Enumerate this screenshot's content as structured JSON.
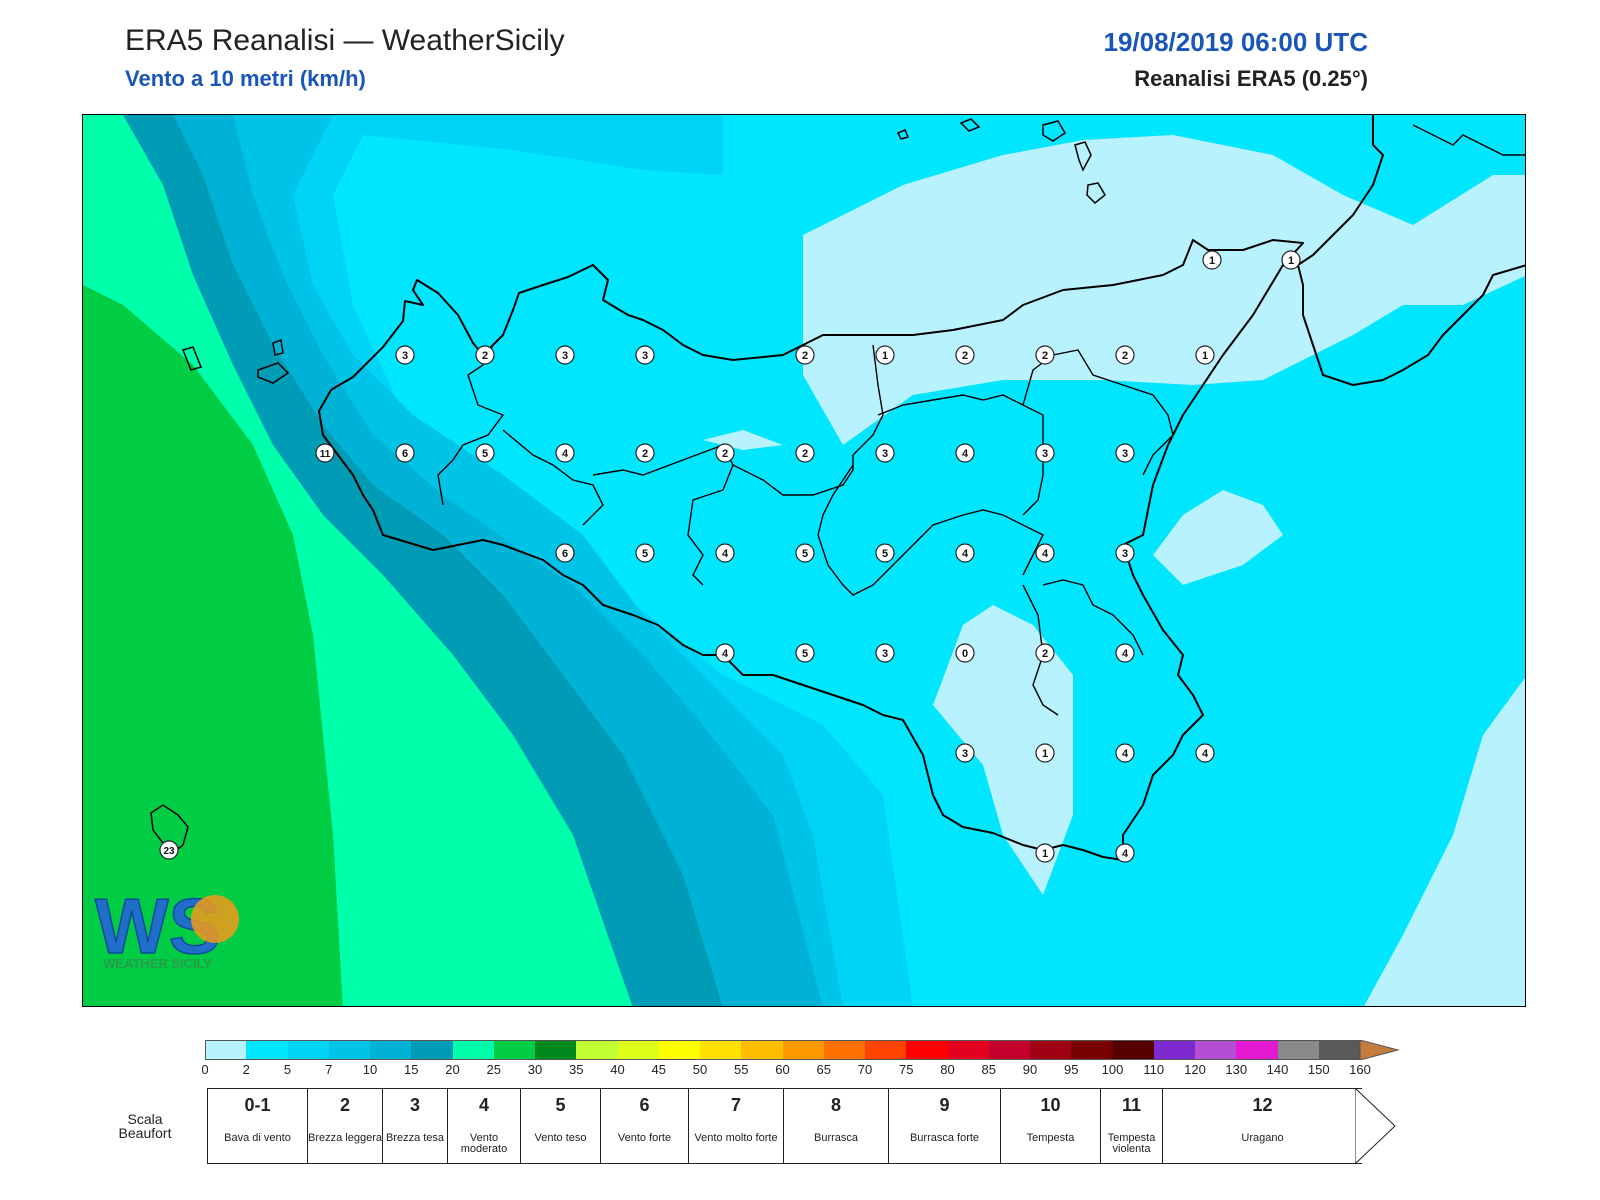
{
  "header": {
    "title": "ERA5 Reanalisi — WeatherSicily",
    "subtitle": "Vento a 10 metri (km/h)",
    "date": "19/08/2019 06:00 UTC",
    "model": "Reanalisi ERA5 (0.25°)"
  },
  "map": {
    "logo_text": "WEATHER SICILY",
    "logo_letters": "WS",
    "station_values": [
      {
        "name": "w1",
        "value": "3"
      },
      {
        "name": "w2",
        "value": "2"
      },
      {
        "name": "w3",
        "value": "3"
      },
      {
        "name": "w4",
        "value": "3"
      },
      {
        "name": "w5",
        "value": "2"
      },
      {
        "name": "w6",
        "value": "1"
      },
      {
        "name": "w7",
        "value": "2"
      },
      {
        "name": "w8",
        "value": "2"
      },
      {
        "name": "w9",
        "value": "2"
      },
      {
        "name": "w10",
        "value": "1"
      },
      {
        "name": "w11",
        "value": "1"
      },
      {
        "name": "w12",
        "value": "1"
      },
      {
        "name": "w13",
        "value": "11"
      },
      {
        "name": "w14",
        "value": "6"
      },
      {
        "name": "w15",
        "value": "5"
      },
      {
        "name": "w16",
        "value": "4"
      },
      {
        "name": "w17",
        "value": "2"
      },
      {
        "name": "w18",
        "value": "2"
      },
      {
        "name": "w19",
        "value": "2"
      },
      {
        "name": "w20",
        "value": "3"
      },
      {
        "name": "w21",
        "value": "4"
      },
      {
        "name": "w22",
        "value": "3"
      },
      {
        "name": "w23",
        "value": "3"
      },
      {
        "name": "w24",
        "value": "6"
      },
      {
        "name": "w25",
        "value": "5"
      },
      {
        "name": "w26",
        "value": "4"
      },
      {
        "name": "w27",
        "value": "5"
      },
      {
        "name": "w28",
        "value": "5"
      },
      {
        "name": "w29",
        "value": "4"
      },
      {
        "name": "w30",
        "value": "4"
      },
      {
        "name": "w31",
        "value": "3"
      },
      {
        "name": "w32",
        "value": "4"
      },
      {
        "name": "w33",
        "value": "5"
      },
      {
        "name": "w34",
        "value": "3"
      },
      {
        "name": "w35",
        "value": "0"
      },
      {
        "name": "w36",
        "value": "2"
      },
      {
        "name": "w37",
        "value": "4"
      },
      {
        "name": "w38",
        "value": "3"
      },
      {
        "name": "w39",
        "value": "1"
      },
      {
        "name": "w40",
        "value": "4"
      },
      {
        "name": "w41",
        "value": "4"
      },
      {
        "name": "w42",
        "value": "1"
      },
      {
        "name": "w43",
        "value": "4"
      },
      {
        "name": "w44",
        "value": "23"
      }
    ]
  },
  "colorbar": {
    "ticks": [
      "0",
      "2",
      "5",
      "7",
      "10",
      "15",
      "20",
      "25",
      "30",
      "35",
      "40",
      "45",
      "50",
      "55",
      "60",
      "65",
      "70",
      "75",
      "80",
      "85",
      "90",
      "95",
      "100",
      "110",
      "120",
      "130",
      "140",
      "150",
      "160"
    ],
    "colors": [
      "#b8f2ff",
      "#00e6ff",
      "#00d4f5",
      "#00c3e8",
      "#00b2d6",
      "#009bb4",
      "#00ffaa",
      "#00cc44",
      "#008a1e",
      "#c2ff33",
      "#dfff1a",
      "#ffff00",
      "#ffe000",
      "#ffbf00",
      "#ff9900",
      "#ff7000",
      "#ff4400",
      "#ff0000",
      "#e3001e",
      "#c3002d",
      "#a00014",
      "#7a0000",
      "#540000",
      "#7f2ad0",
      "#b44fd4",
      "#e31ad1",
      "#8a8a8a",
      "#5a5a5a",
      "#000000",
      "#7a4020",
      "#c47b3e"
    ]
  },
  "beaufort": {
    "title_line1": "Scala",
    "title_line2": "Beaufort",
    "cells": [
      {
        "num": "0-1",
        "label": "Bava di vento"
      },
      {
        "num": "2",
        "label": "Brezza leggera"
      },
      {
        "num": "3",
        "label": "Brezza tesa"
      },
      {
        "num": "4",
        "label": "Vento moderato"
      },
      {
        "num": "5",
        "label": "Vento teso"
      },
      {
        "num": "6",
        "label": "Vento forte"
      },
      {
        "num": "7",
        "label": "Vento molto forte"
      },
      {
        "num": "8",
        "label": "Burrasca"
      },
      {
        "num": "9",
        "label": "Burrasca forte"
      },
      {
        "num": "10",
        "label": "Tempesta"
      },
      {
        "num": "11",
        "label": "Tempesta violenta"
      },
      {
        "num": "12",
        "label": "Uragano"
      }
    ]
  }
}
